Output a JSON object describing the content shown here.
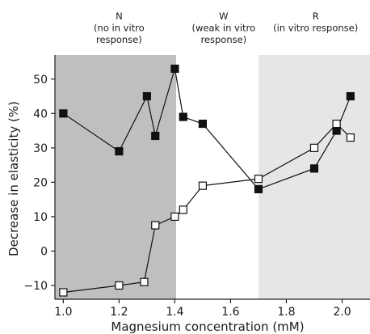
{
  "chart_data": {
    "type": "line",
    "xlabel": "Magnesium concentration (mM)",
    "ylabel": "Decrease in elasticity (%)",
    "xlim": [
      0.97,
      2.1
    ],
    "ylim": [
      -14,
      57
    ],
    "xticks": [
      1.0,
      1.2,
      1.4,
      1.6,
      1.8,
      2.0
    ],
    "xtick_labels": [
      "1.0",
      "1.2",
      "1.4",
      "1.6",
      "1.8",
      "2.0"
    ],
    "yticks": [
      -10,
      0,
      10,
      20,
      30,
      40,
      50
    ],
    "ytick_labels": [
      "−10",
      "0",
      "10",
      "20",
      "30",
      "40",
      "50"
    ],
    "grid": false,
    "regions": [
      {
        "label_lines": [
          "N",
          "(no in vitro",
          "response)"
        ],
        "x_range": [
          0.97,
          1.405
        ],
        "color": "#bfbfbf"
      },
      {
        "label_lines": [
          "W",
          "(weak in vitro",
          "response)"
        ],
        "x_range": [
          1.405,
          1.7
        ],
        "color": "#ffffff"
      },
      {
        "label_lines": [
          "R",
          "(in vitro response)"
        ],
        "x_range": [
          1.7,
          2.1
        ],
        "color": "#e6e6e6"
      }
    ],
    "series": [
      {
        "marker": "filled-square",
        "color": "#111111",
        "points": [
          [
            1.0,
            40
          ],
          [
            1.2,
            29
          ],
          [
            1.3,
            45
          ],
          [
            1.33,
            33.5
          ],
          [
            1.4,
            53
          ],
          [
            1.43,
            39
          ],
          [
            1.5,
            37
          ],
          [
            1.7,
            18
          ],
          [
            1.9,
            24
          ],
          [
            1.98,
            35
          ],
          [
            2.03,
            45
          ]
        ]
      },
      {
        "marker": "open-square",
        "color": "#111111",
        "points": [
          [
            1.0,
            -12
          ],
          [
            1.2,
            -10
          ],
          [
            1.29,
            -9
          ],
          [
            1.33,
            7.5
          ],
          [
            1.4,
            10
          ],
          [
            1.43,
            12
          ],
          [
            1.5,
            19
          ],
          [
            1.7,
            21
          ],
          [
            1.9,
            30
          ],
          [
            1.98,
            37
          ],
          [
            2.03,
            33
          ]
        ]
      }
    ]
  }
}
